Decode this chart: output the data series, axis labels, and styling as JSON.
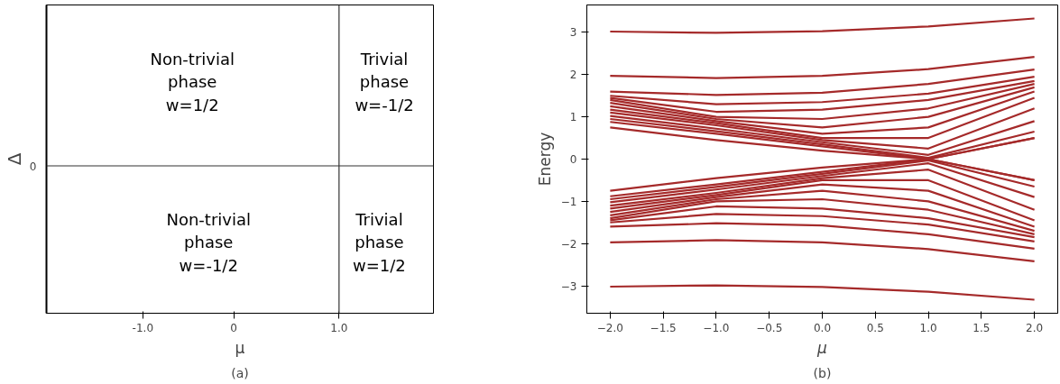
{
  "chart_data": [
    {
      "type": "other",
      "xlabel": "μ",
      "ylabel": "Δ",
      "annotations": [
        "Non-trivial\nphase\nw=1/2",
        "Trivial\nphase\nw=-1/2",
        "Non-trivial\nphase\nw=-1/2",
        "Trivial\nphase\nw=1/2",
        "-1.0",
        "0",
        "1.0",
        "0",
        "(a)"
      ]
    },
    {
      "type": "line",
      "xlabel": "μ",
      "ylabel": "Energy",
      "xlim": [
        -2.22,
        2.22
      ],
      "ylim": [
        -3.65,
        3.65
      ],
      "xticks": [
        {
          "value": -2,
          "label": "−2.0"
        },
        {
          "value": -1.5,
          "label": "−1.5"
        },
        {
          "value": -1,
          "label": "−1.0"
        },
        {
          "value": -0.5,
          "label": "−0.5"
        },
        {
          "value": 0,
          "label": "0.0"
        },
        {
          "value": 0.5,
          "label": "0.5"
        },
        {
          "value": 1,
          "label": "1.0"
        },
        {
          "value": 1.5,
          "label": "1.5"
        },
        {
          "value": 2,
          "label": "2.0"
        }
      ],
      "yticks": [
        {
          "value": -3,
          "label": "−3"
        },
        {
          "value": -2,
          "label": "−2"
        },
        {
          "value": -1,
          "label": "−1"
        },
        0,
        1,
        2,
        3
      ],
      "x": [
        -2,
        -1,
        0,
        1,
        2
      ],
      "marker": "none",
      "line_style": "solid",
      "annotations": [
        "(b)"
      ],
      "series": [
        {
          "color": "#a52a2a",
          "values": [
            3.02,
            2.99,
            3.03,
            3.14,
            3.33
          ]
        },
        {
          "color": "#a52a2a",
          "values": [
            1.97,
            1.92,
            1.97,
            2.13,
            2.42
          ]
        },
        {
          "color": "#a52a2a",
          "values": [
            1.6,
            1.52,
            1.57,
            1.78,
            2.12
          ]
        },
        {
          "color": "#a52a2a",
          "values": [
            1.5,
            1.3,
            1.35,
            1.55,
            1.95
          ]
        },
        {
          "color": "#a52a2a",
          "values": [
            1.45,
            1.12,
            1.17,
            1.4,
            1.85
          ]
        },
        {
          "color": "#a52a2a",
          "values": [
            1.4,
            1.0,
            0.95,
            1.2,
            1.78
          ]
        },
        {
          "color": "#a52a2a",
          "values": [
            1.33,
            0.95,
            0.75,
            1.0,
            1.7
          ]
        },
        {
          "color": "#a52a2a",
          "values": [
            1.25,
            0.9,
            0.6,
            0.75,
            1.6
          ]
        },
        {
          "color": "#a52a2a",
          "values": [
            1.17,
            0.85,
            0.5,
            0.5,
            1.45
          ]
        },
        {
          "color": "#a52a2a",
          "values": [
            1.1,
            0.8,
            0.45,
            0.25,
            1.2
          ]
        },
        {
          "color": "#a52a2a",
          "values": [
            1.02,
            0.72,
            0.4,
            0.1,
            0.9
          ]
        },
        {
          "color": "#a52a2a",
          "values": [
            0.95,
            0.66,
            0.35,
            0.03,
            0.65
          ]
        },
        {
          "color": "#a52a2a",
          "values": [
            0.88,
            0.6,
            0.3,
            0.0,
            0.5
          ]
        },
        {
          "color": "#a52a2a",
          "values": [
            0.75,
            0.45,
            0.2,
            0.0,
            0.5
          ]
        },
        {
          "color": "#a52a2a",
          "values": [
            -0.75,
            -0.45,
            -0.2,
            0.0,
            -0.5
          ]
        },
        {
          "color": "#a52a2a",
          "values": [
            -0.88,
            -0.6,
            -0.3,
            0.0,
            -0.5
          ]
        },
        {
          "color": "#a52a2a",
          "values": [
            -0.95,
            -0.66,
            -0.35,
            -0.03,
            -0.65
          ]
        },
        {
          "color": "#a52a2a",
          "values": [
            -1.02,
            -0.72,
            -0.4,
            -0.1,
            -0.9
          ]
        },
        {
          "color": "#a52a2a",
          "values": [
            -1.1,
            -0.8,
            -0.45,
            -0.25,
            -1.2
          ]
        },
        {
          "color": "#a52a2a",
          "values": [
            -1.17,
            -0.85,
            -0.5,
            -0.5,
            -1.45
          ]
        },
        {
          "color": "#a52a2a",
          "values": [
            -1.25,
            -0.9,
            -0.6,
            -0.75,
            -1.6
          ]
        },
        {
          "color": "#a52a2a",
          "values": [
            -1.33,
            -0.95,
            -0.75,
            -1.0,
            -1.7
          ]
        },
        {
          "color": "#a52a2a",
          "values": [
            -1.4,
            -1.0,
            -0.95,
            -1.2,
            -1.78
          ]
        },
        {
          "color": "#a52a2a",
          "values": [
            -1.45,
            -1.12,
            -1.17,
            -1.4,
            -1.85
          ]
        },
        {
          "color": "#a52a2a",
          "values": [
            -1.5,
            -1.3,
            -1.35,
            -1.55,
            -1.95
          ]
        },
        {
          "color": "#a52a2a",
          "values": [
            -1.6,
            -1.52,
            -1.57,
            -1.78,
            -2.12
          ]
        },
        {
          "color": "#a52a2a",
          "values": [
            -1.97,
            -1.92,
            -1.97,
            -2.13,
            -2.42
          ]
        },
        {
          "color": "#a52a2a",
          "values": [
            -3.02,
            -2.99,
            -3.03,
            -3.14,
            -3.33
          ]
        }
      ]
    }
  ]
}
